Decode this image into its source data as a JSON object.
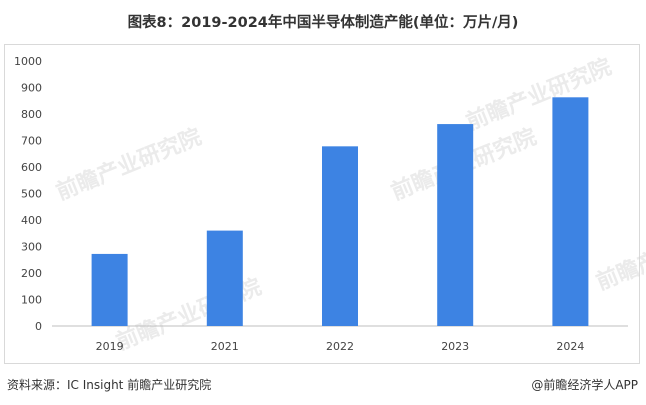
{
  "title": "图表8：2019-2024年中国半导体制造产能(单位：万片/月)",
  "footer": {
    "source": "资料来源：IC Insight 前瞻产业研究院",
    "credit": "@前瞻经济学人APP"
  },
  "watermark": "前瞻产业研究院",
  "chart_data": {
    "type": "bar",
    "categories": [
      "2019",
      "2021",
      "2022",
      "2023",
      "2024"
    ],
    "values": [
      272,
      360,
      678,
      762,
      863
    ],
    "ylim": [
      0,
      1000
    ],
    "yticks": [
      0,
      100,
      200,
      300,
      400,
      500,
      600,
      700,
      800,
      900,
      1000
    ],
    "grid": false,
    "legend": "none",
    "bar_color": "#3d83e3"
  }
}
